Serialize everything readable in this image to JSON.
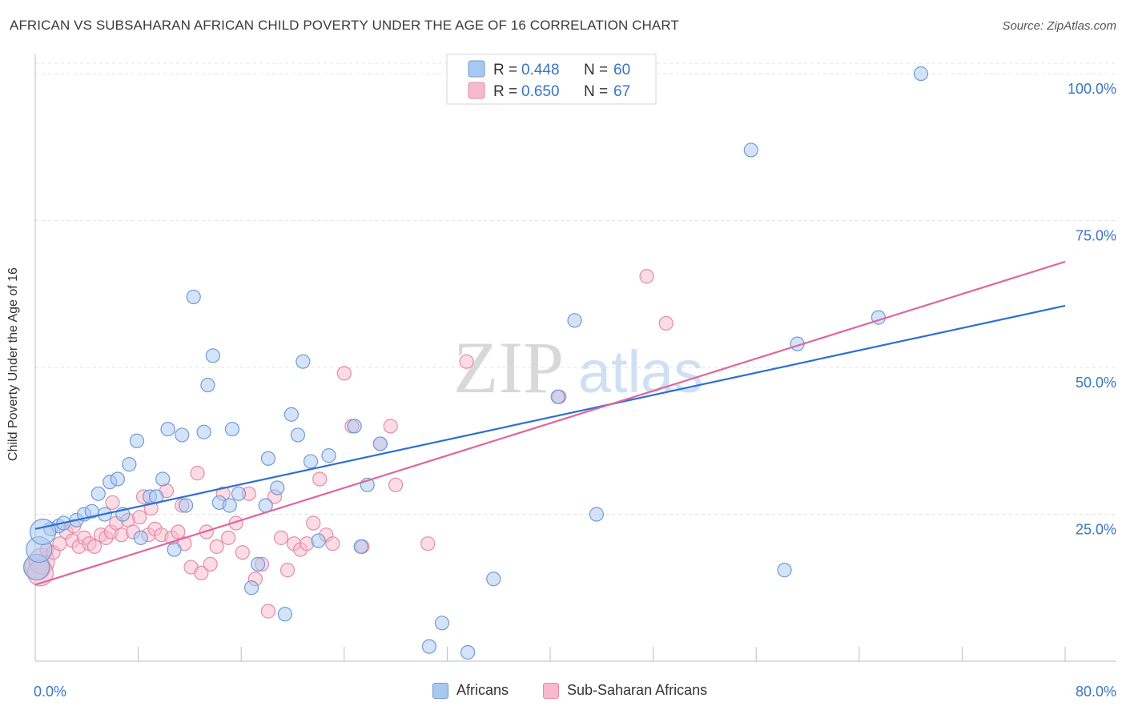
{
  "header": {
    "title": "AFRICAN VS SUBSAHARAN AFRICAN CHILD POVERTY UNDER THE AGE OF 16 CORRELATION CHART",
    "source": "Source: ZipAtlas.com"
  },
  "watermark": {
    "zip": "ZIP",
    "atlas": "atlas"
  },
  "legend": {
    "rows": [
      {
        "r_label": "R =",
        "r_value": "0.448",
        "n_label": "N =",
        "n_value": "60"
      },
      {
        "r_label": "R =",
        "r_value": "0.650",
        "n_label": "N =",
        "n_value": "67"
      }
    ]
  },
  "colors": {
    "blue_fill": "#a9c8f0",
    "blue_stroke": "#6f9bd6",
    "blue_line": "#2e6fd0",
    "pink_fill": "#f7b9cc",
    "pink_stroke": "#e58aa8",
    "pink_line": "#e0669a",
    "tick_text": "#3a74c4",
    "grid": "#e3e3e3"
  },
  "chart_data": {
    "type": "scatter",
    "title": "AFRICAN VS SUBSAHARAN AFRICAN CHILD POVERTY UNDER THE AGE OF 16 CORRELATION CHART",
    "xlabel": "",
    "ylabel": "Child Poverty Under the Age of 16",
    "xlim": [
      0,
      80
    ],
    "ylim": [
      0,
      103
    ],
    "x_tick_labels": [
      "0.0%",
      "80.0%"
    ],
    "y_ticks": [
      25,
      50,
      75,
      100
    ],
    "y_tick_labels": [
      "25.0%",
      "50.0%",
      "75.0%",
      "100.0%"
    ],
    "grid": true,
    "legend_position": "top-center",
    "series": [
      {
        "name": "Africans",
        "r": 0.448,
        "n": 60,
        "trend": [
          [
            0,
            22.5
          ],
          [
            80,
            60.5
          ]
        ],
        "points": [
          [
            0.1,
            16.0
          ],
          [
            0.3,
            19.0
          ],
          [
            1.2,
            22.5
          ],
          [
            1.8,
            23.0
          ],
          [
            2.2,
            23.5
          ],
          [
            3.2,
            24.0
          ],
          [
            3.8,
            25.0
          ],
          [
            4.4,
            25.5
          ],
          [
            4.9,
            28.5
          ],
          [
            5.4,
            25.0
          ],
          [
            5.8,
            30.5
          ],
          [
            6.4,
            31.0
          ],
          [
            6.8,
            25.0
          ],
          [
            7.3,
            33.5
          ],
          [
            7.9,
            37.5
          ],
          [
            8.2,
            21.0
          ],
          [
            8.9,
            28.0
          ],
          [
            9.4,
            28.0
          ],
          [
            9.9,
            31.0
          ],
          [
            10.3,
            39.5
          ],
          [
            10.8,
            19.0
          ],
          [
            11.4,
            38.5
          ],
          [
            11.7,
            26.5
          ],
          [
            12.3,
            62.0
          ],
          [
            13.1,
            39.0
          ],
          [
            13.4,
            47.0
          ],
          [
            13.8,
            52.0
          ],
          [
            14.3,
            27.0
          ],
          [
            15.1,
            26.5
          ],
          [
            15.3,
            39.5
          ],
          [
            15.8,
            28.5
          ],
          [
            16.8,
            12.5
          ],
          [
            17.3,
            16.5
          ],
          [
            17.9,
            26.5
          ],
          [
            18.1,
            34.5
          ],
          [
            18.8,
            29.5
          ],
          [
            19.4,
            8.0
          ],
          [
            19.9,
            42.0
          ],
          [
            20.4,
            38.5
          ],
          [
            20.8,
            51.0
          ],
          [
            21.4,
            34.0
          ],
          [
            22.0,
            20.5
          ],
          [
            22.8,
            35.0
          ],
          [
            24.8,
            40.0
          ],
          [
            25.3,
            19.5
          ],
          [
            25.8,
            30.0
          ],
          [
            26.8,
            37.0
          ],
          [
            30.6,
            2.5
          ],
          [
            31.6,
            6.5
          ],
          [
            33.6,
            1.5
          ],
          [
            35.6,
            14.0
          ],
          [
            40.6,
            45.0
          ],
          [
            41.9,
            58.0
          ],
          [
            43.6,
            25.0
          ],
          [
            55.6,
            87.0
          ],
          [
            58.2,
            15.5
          ],
          [
            59.2,
            54.0
          ],
          [
            65.5,
            58.5
          ],
          [
            68.8,
            100.0
          ],
          [
            0.6,
            22.0
          ]
        ]
      },
      {
        "name": "Sub-Saharan Africans",
        "r": 0.65,
        "n": 67,
        "trend": [
          [
            0,
            13.0
          ],
          [
            80,
            68.0
          ]
        ],
        "points": [
          [
            0.2,
            16.0
          ],
          [
            0.5,
            17.0
          ],
          [
            0.9,
            19.0
          ],
          [
            1.4,
            18.5
          ],
          [
            1.9,
            20.0
          ],
          [
            2.4,
            22.0
          ],
          [
            2.9,
            20.5
          ],
          [
            3.4,
            19.5
          ],
          [
            3.8,
            21.0
          ],
          [
            4.2,
            20.0
          ],
          [
            4.6,
            19.5
          ],
          [
            5.1,
            21.5
          ],
          [
            5.5,
            21.0
          ],
          [
            5.9,
            22.0
          ],
          [
            6.3,
            23.5
          ],
          [
            6.7,
            21.5
          ],
          [
            7.2,
            24.0
          ],
          [
            7.6,
            22.0
          ],
          [
            8.1,
            24.5
          ],
          [
            8.4,
            28.0
          ],
          [
            8.8,
            21.5
          ],
          [
            9.3,
            22.5
          ],
          [
            9.8,
            21.5
          ],
          [
            10.2,
            29.0
          ],
          [
            10.6,
            21.0
          ],
          [
            11.1,
            22.0
          ],
          [
            11.6,
            20.0
          ],
          [
            12.1,
            16.0
          ],
          [
            12.6,
            32.0
          ],
          [
            12.9,
            15.0
          ],
          [
            13.6,
            16.5
          ],
          [
            14.1,
            19.5
          ],
          [
            14.6,
            28.5
          ],
          [
            15.0,
            21.0
          ],
          [
            15.6,
            23.5
          ],
          [
            16.1,
            18.5
          ],
          [
            16.6,
            28.5
          ],
          [
            17.1,
            14.0
          ],
          [
            17.6,
            16.5
          ],
          [
            18.1,
            8.5
          ],
          [
            18.6,
            28.0
          ],
          [
            19.1,
            21.0
          ],
          [
            19.6,
            15.5
          ],
          [
            20.1,
            20.0
          ],
          [
            20.6,
            19.0
          ],
          [
            21.1,
            20.0
          ],
          [
            21.6,
            23.5
          ],
          [
            22.1,
            31.0
          ],
          [
            22.6,
            21.5
          ],
          [
            23.1,
            20.0
          ],
          [
            24.0,
            49.0
          ],
          [
            24.6,
            40.0
          ],
          [
            26.8,
            37.0
          ],
          [
            27.6,
            40.0
          ],
          [
            28.0,
            30.0
          ],
          [
            30.5,
            20.0
          ],
          [
            33.5,
            51.0
          ],
          [
            40.7,
            45.0
          ],
          [
            47.5,
            65.5
          ],
          [
            49.0,
            57.5
          ],
          [
            25.4,
            19.5
          ],
          [
            9.0,
            26.0
          ],
          [
            11.4,
            26.5
          ],
          [
            3.0,
            23.0
          ],
          [
            6.0,
            27.0
          ],
          [
            13.3,
            22.0
          ],
          [
            0.4,
            15.0
          ]
        ]
      }
    ]
  }
}
